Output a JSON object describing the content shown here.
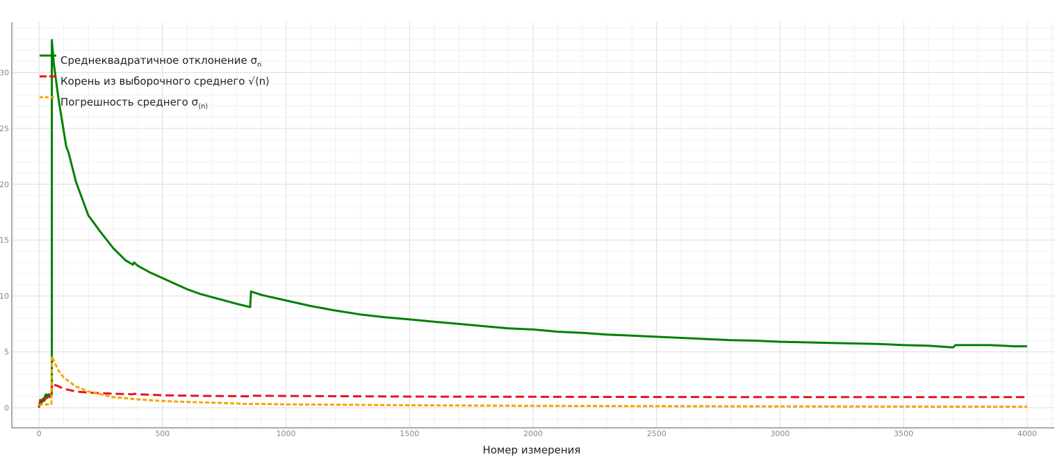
{
  "chart_data": {
    "type": "line",
    "xlabel": "Номер измерения",
    "ylabel": "",
    "xlim": [
      -110,
      4110
    ],
    "ylim": [
      -1.8,
      34.5
    ],
    "x_ticks": [
      0,
      500,
      1000,
      1500,
      2000,
      2500,
      3000,
      3500,
      4000
    ],
    "y_ticks": [
      0,
      5,
      10,
      15,
      20,
      25,
      30
    ],
    "x_tick_labels": [
      "0",
      "500",
      "1000",
      "1500",
      "2000",
      "2500",
      "3000",
      "3500",
      "4000"
    ],
    "y_tick_labels": [
      "0",
      "5",
      "10",
      "15",
      "20",
      "25",
      "30"
    ],
    "grid": true,
    "minor_grid": true,
    "legend_position": "top-left",
    "series": [
      {
        "name": "Среднеквадратичное отклонение σ",
        "name_sub": "n",
        "color": "#008000",
        "style": "solid",
        "points": [
          [
            0,
            0
          ],
          [
            5,
            0.6
          ],
          [
            10,
            0.4
          ],
          [
            15,
            0.8
          ],
          [
            20,
            0.6
          ],
          [
            25,
            1.1
          ],
          [
            30,
            1.2
          ],
          [
            35,
            0.9
          ],
          [
            40,
            1.2
          ],
          [
            45,
            1.1
          ],
          [
            50,
            1.2
          ],
          [
            52,
            1.1
          ],
          [
            52,
            32.9
          ],
          [
            60,
            30.8
          ],
          [
            80,
            27.5
          ],
          [
            100,
            24.8
          ],
          [
            110,
            23.4
          ],
          [
            120,
            22.8
          ],
          [
            150,
            20.2
          ],
          [
            200,
            17.2
          ],
          [
            230,
            16.3
          ],
          [
            250,
            15.7
          ],
          [
            300,
            14.3
          ],
          [
            350,
            13.2
          ],
          [
            380,
            12.8
          ],
          [
            385,
            13.0
          ],
          [
            400,
            12.7
          ],
          [
            450,
            12.1
          ],
          [
            500,
            11.6
          ],
          [
            550,
            11.1
          ],
          [
            600,
            10.6
          ],
          [
            650,
            10.2
          ],
          [
            700,
            9.9
          ],
          [
            750,
            9.6
          ],
          [
            800,
            9.3
          ],
          [
            855,
            9.0
          ],
          [
            858,
            10.4
          ],
          [
            900,
            10.1
          ],
          [
            1000,
            9.6
          ],
          [
            1100,
            9.1
          ],
          [
            1200,
            8.7
          ],
          [
            1300,
            8.35
          ],
          [
            1400,
            8.1
          ],
          [
            1500,
            7.9
          ],
          [
            1600,
            7.7
          ],
          [
            1700,
            7.5
          ],
          [
            1800,
            7.3
          ],
          [
            1900,
            7.1
          ],
          [
            2000,
            7.0
          ],
          [
            2100,
            6.8
          ],
          [
            2200,
            6.7
          ],
          [
            2300,
            6.55
          ],
          [
            2400,
            6.45
          ],
          [
            2500,
            6.35
          ],
          [
            2600,
            6.25
          ],
          [
            2700,
            6.15
          ],
          [
            2800,
            6.05
          ],
          [
            2900,
            6.0
          ],
          [
            3000,
            5.9
          ],
          [
            3100,
            5.85
          ],
          [
            3200,
            5.8
          ],
          [
            3300,
            5.75
          ],
          [
            3400,
            5.7
          ],
          [
            3500,
            5.6
          ],
          [
            3600,
            5.55
          ],
          [
            3700,
            5.4
          ],
          [
            3710,
            5.6
          ],
          [
            3800,
            5.6
          ],
          [
            3850,
            5.6
          ],
          [
            3900,
            5.55
          ],
          [
            3950,
            5.5
          ],
          [
            4000,
            5.5
          ]
        ]
      },
      {
        "name": "Корень из выборочного среднего √⟨n⟩",
        "name_sub": "",
        "color": "#e8141a",
        "style": "dashed",
        "points": [
          [
            0,
            0.1
          ],
          [
            5,
            0.7
          ],
          [
            10,
            0.5
          ],
          [
            20,
            0.6
          ],
          [
            30,
            0.9
          ],
          [
            40,
            1.0
          ],
          [
            50,
            0.9
          ],
          [
            52,
            2.1
          ],
          [
            70,
            2.0
          ],
          [
            100,
            1.7
          ],
          [
            150,
            1.45
          ],
          [
            200,
            1.35
          ],
          [
            250,
            1.3
          ],
          [
            300,
            1.25
          ],
          [
            380,
            1.2
          ],
          [
            385,
            1.25
          ],
          [
            400,
            1.2
          ],
          [
            500,
            1.12
          ],
          [
            600,
            1.08
          ],
          [
            700,
            1.05
          ],
          [
            855,
            1.02
          ],
          [
            860,
            1.08
          ],
          [
            1000,
            1.05
          ],
          [
            1500,
            1.0
          ],
          [
            2000,
            0.98
          ],
          [
            2500,
            0.96
          ],
          [
            3000,
            0.95
          ],
          [
            3500,
            0.95
          ],
          [
            4000,
            0.95
          ]
        ]
      },
      {
        "name": "Погрешность среднего σ",
        "name_sub": "⟨n⟩",
        "color": "#f5a300",
        "style": "dotted",
        "points": [
          [
            0,
            0.2
          ],
          [
            10,
            0.3
          ],
          [
            20,
            0.25
          ],
          [
            30,
            0.3
          ],
          [
            50,
            0.3
          ],
          [
            52,
            4.6
          ],
          [
            60,
            4.2
          ],
          [
            80,
            3.3
          ],
          [
            100,
            2.7
          ],
          [
            150,
            1.9
          ],
          [
            200,
            1.45
          ],
          [
            250,
            1.2
          ],
          [
            300,
            0.95
          ],
          [
            400,
            0.75
          ],
          [
            500,
            0.6
          ],
          [
            600,
            0.52
          ],
          [
            700,
            0.45
          ],
          [
            800,
            0.38
          ],
          [
            855,
            0.32
          ],
          [
            860,
            0.35
          ],
          [
            1000,
            0.3
          ],
          [
            1500,
            0.22
          ],
          [
            2000,
            0.17
          ],
          [
            2500,
            0.14
          ],
          [
            3000,
            0.12
          ],
          [
            3500,
            0.1
          ],
          [
            4000,
            0.09
          ]
        ]
      }
    ]
  }
}
